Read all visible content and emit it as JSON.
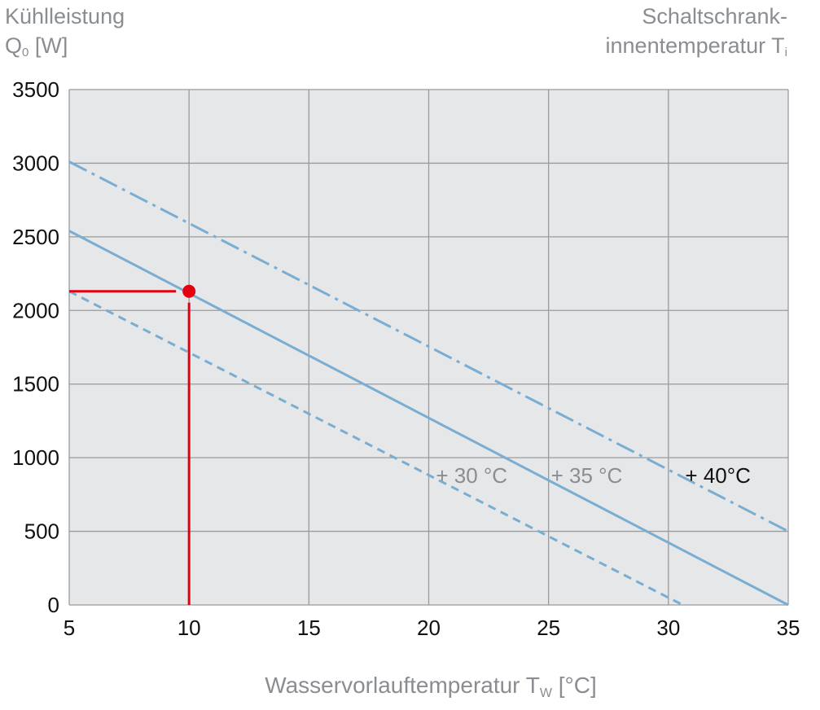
{
  "chart_data": {
    "type": "line",
    "ylabel_line1": "Kühlleistung",
    "ylabel_symbol": "Q",
    "ylabel_sub": "0",
    "ylabel_unit": " [W]",
    "right_label_line1": "Schaltschrank-",
    "right_label_line2": "innentemperatur T",
    "right_label_sub": "i",
    "xlabel_main": "Wasservorlauftemperatur T",
    "xlabel_sub": "W",
    "xlabel_unit": " [°C]",
    "xlim": [
      5,
      35
    ],
    "ylim": [
      0,
      3500
    ],
    "x_ticks": [
      5,
      10,
      15,
      20,
      25,
      30,
      35
    ],
    "y_ticks": [
      0,
      500,
      1000,
      1500,
      2000,
      2500,
      3000,
      3500
    ],
    "grid": true,
    "colors": {
      "plot_background": "#e6e7e8",
      "grid": "#9a9b9d",
      "series": "#7aadd2",
      "marker": "#e3000f"
    },
    "series": [
      {
        "name": "+ 30 °C",
        "style": "dashed",
        "x": [
          5,
          30.6
        ],
        "y": [
          2130,
          0
        ],
        "label_x": 20.3,
        "label_y": 880,
        "label_color": "#8a8d91"
      },
      {
        "name": "+ 35 °C",
        "style": "solid",
        "x": [
          5,
          35
        ],
        "y": [
          2540,
          0
        ],
        "label_x": 25.1,
        "label_y": 880,
        "label_color": "#8a8d91"
      },
      {
        "name": "+ 40°C",
        "style": "dashdot",
        "x": [
          5,
          35
        ],
        "y": [
          3010,
          500
        ],
        "label_x": 30.7,
        "label_y": 880,
        "label_color": "#111111"
      }
    ],
    "marker": {
      "x": 10,
      "y": 2130
    }
  }
}
